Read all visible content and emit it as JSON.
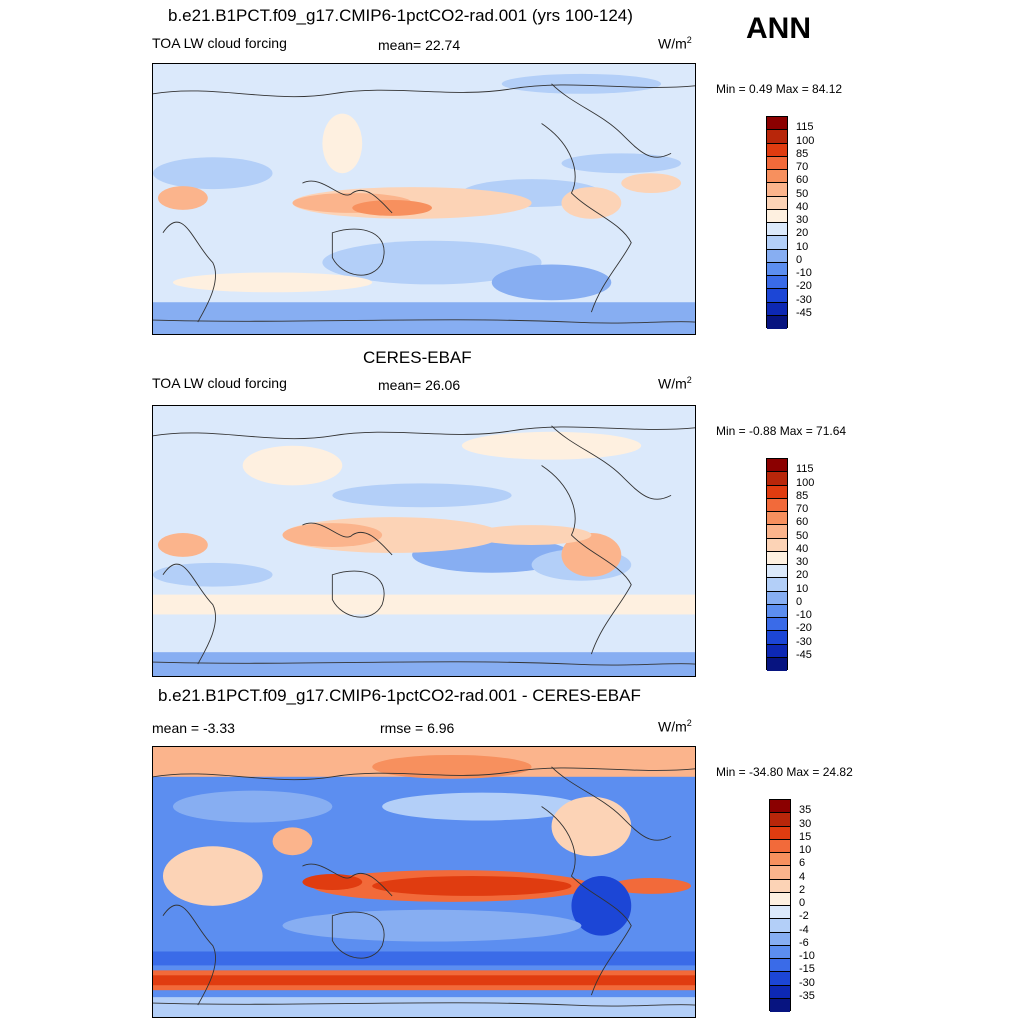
{
  "season": "ANN",
  "units": "W/m",
  "units_sup": "2",
  "panels": [
    {
      "title": "b.e21.B1PCT.f09_g17.CMIP6-1pctCO2-rad.001 (yrs 100-124)",
      "variable": "TOA LW cloud forcing",
      "stat": "mean=  22.74",
      "minmax": "Min =   0.49 Max =  84.12"
    },
    {
      "title": "CERES-EBAF",
      "variable": "TOA LW cloud forcing",
      "stat": "mean=  26.06",
      "minmax": "Min =  -0.88 Max =  71.64"
    },
    {
      "title": "b.e21.B1PCT.f09_g17.CMIP6-1pctCO2-rad.001 - CERES-EBAF",
      "stat_left": "mean =  -3.33",
      "stat": "rmse =   6.96",
      "minmax": "Min = -34.80 Max =  24.82"
    }
  ],
  "colorbar_main": {
    "labels": [
      "115",
      "100",
      "85",
      "70",
      "60",
      "50",
      "40",
      "30",
      "20",
      "10",
      "0",
      "-10",
      "-20",
      "-30",
      "-45"
    ],
    "colors": [
      "#8b0000",
      "#b8260a",
      "#e03c10",
      "#f26a3a",
      "#f7905e",
      "#fbb48c",
      "#fcd3b6",
      "#fef0e0",
      "#dbe9fb",
      "#b3cff8",
      "#87aef2",
      "#5c8ef0",
      "#3a6be8",
      "#1c46d6",
      "#0d28b4",
      "#071480"
    ]
  },
  "colorbar_diff": {
    "labels": [
      "35",
      "30",
      "15",
      "10",
      "6",
      "4",
      "2",
      "0",
      "-2",
      "-4",
      "-6",
      "-10",
      "-15",
      "-30",
      "-35"
    ],
    "colors": [
      "#8b0000",
      "#b8260a",
      "#e03c10",
      "#f26a3a",
      "#f7905e",
      "#fbb48c",
      "#fcd3b6",
      "#fef0e0",
      "#dbe9fb",
      "#b3cff8",
      "#87aef2",
      "#5c8ef0",
      "#3a6be8",
      "#1c46d6",
      "#0d28b4",
      "#071480"
    ]
  }
}
